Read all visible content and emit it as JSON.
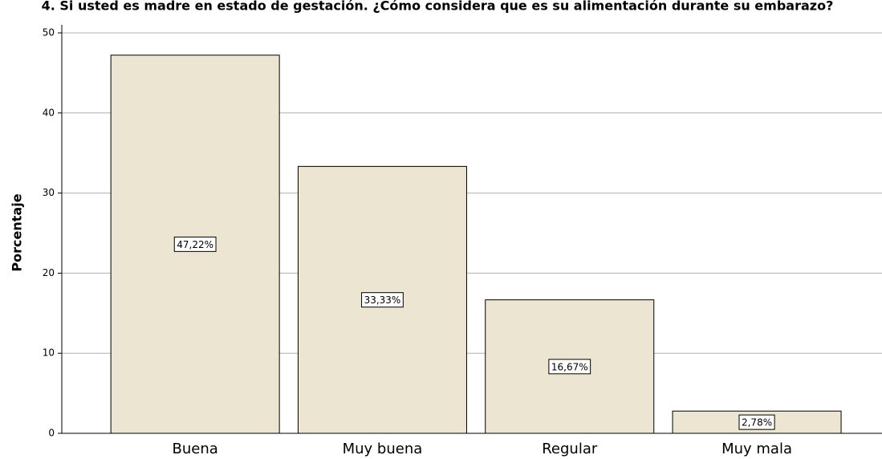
{
  "chart_data": {
    "type": "bar",
    "title": "4. Si usted es madre en estado de gestación. ¿Cómo considera que es su alimentación durante su embarazo?",
    "y_label": "Porcentaje",
    "categories": [
      "Buena",
      "Muy buena",
      "Regular",
      "Muy mala"
    ],
    "values": [
      47.22,
      33.33,
      16.67,
      2.78
    ],
    "value_labels": [
      "47,22%",
      "33,33%",
      "16,67%",
      "2,78%"
    ],
    "color": "#ece5d1",
    "ylim": [
      0,
      50
    ],
    "yticks": [
      0,
      10,
      20,
      30,
      40,
      50
    ],
    "grid": true
  }
}
